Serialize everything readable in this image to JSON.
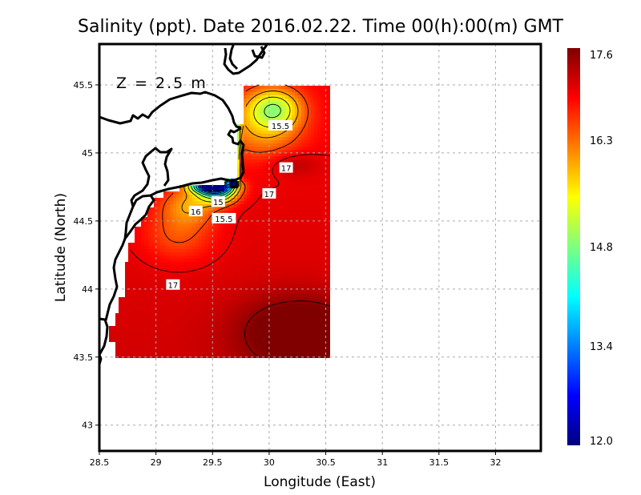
{
  "chart_data": {
    "type": "heatmap",
    "title": "Salinity (ppt). Date 2016.02.22. Time 00(h):00(m) GMT",
    "xlabel": "Longitude (East)",
    "ylabel": "Latitude (North)",
    "annotation": "Z = 2.5 m",
    "xlim": [
      28.5,
      32.4
    ],
    "ylim": [
      42.81,
      45.8
    ],
    "xticks": [
      28.5,
      29,
      29.5,
      30,
      30.5,
      31,
      31.5,
      32
    ],
    "xtick_labels": [
      "28.5",
      "29",
      "29.5",
      "30",
      "30.5",
      "31",
      "31.5",
      "32"
    ],
    "yticks": [
      43,
      43.5,
      44,
      44.5,
      45,
      45.5
    ],
    "ytick_labels": [
      "43",
      "43.5",
      "44",
      "44.5",
      "45",
      "45.5"
    ],
    "grid": true,
    "data_extent": {
      "lon": [
        28.6,
        30.55
      ],
      "lat": [
        43.5,
        45.5
      ]
    },
    "colorbar": {
      "min": 12.0,
      "max": 17.6,
      "ticks": [
        12.0,
        13.4,
        14.8,
        16.3,
        17.6
      ],
      "tick_labels": [
        "12.0",
        "13.4",
        "14.8",
        "16.3",
        "17.6"
      ],
      "colormap": "jet",
      "placement": "right"
    },
    "contour_levels": [
      12,
      12.5,
      13,
      13.5,
      14,
      14.5,
      15,
      15.5,
      16,
      16.5,
      17,
      17.5
    ],
    "contour_labels": [
      {
        "text": "15.5",
        "lon": 30.1,
        "lat": 45.2
      },
      {
        "text": "17",
        "lon": 30.15,
        "lat": 44.89
      },
      {
        "text": "17",
        "lon": 30.0,
        "lat": 44.7
      },
      {
        "text": "15",
        "lon": 29.55,
        "lat": 44.64
      },
      {
        "text": "15.5",
        "lon": 29.6,
        "lat": 44.6
      },
      {
        "text": "16",
        "lon": 29.45,
        "lat": 44.57
      },
      {
        "text": "17",
        "lon": 29.15,
        "lat": 44.03
      }
    ],
    "field_summary": {
      "min_value_region": "coastal plume near 29.65E 44.8N (~12.0)",
      "max_value_region": "southeast corner near 30.3E 43.7N (~17.6)"
    }
  }
}
